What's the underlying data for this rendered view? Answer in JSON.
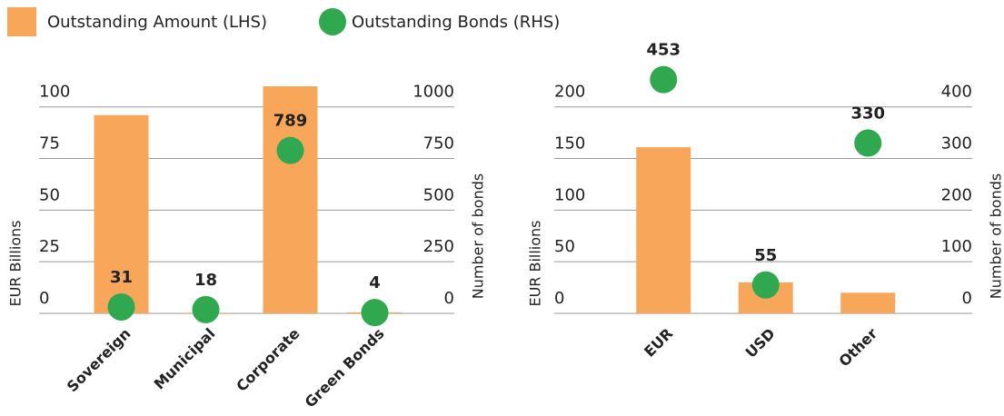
{
  "chart_data": [
    {
      "type": "bar_dot",
      "categories": [
        "Sovereign",
        "Municipal",
        "Corporate",
        "Green Bonds"
      ],
      "ylabel": "EUR Billions",
      "y2label": "Number of bonds",
      "ylim": [
        0,
        110
      ],
      "yticks": [
        0,
        25,
        50,
        75,
        100
      ],
      "y2lim": [
        0,
        1100
      ],
      "y2ticks": [
        0,
        250,
        500,
        750,
        1000
      ],
      "grid": true,
      "series": [
        {
          "name": "Outstanding Amount (LHS)",
          "color": "#f8a65a",
          "values": [
            96,
            0.3,
            110,
            0.5
          ]
        },
        {
          "name": "Outstanding Bonds (RHS)",
          "color": "#2fa84f",
          "axis": "y2",
          "values": [
            31,
            18,
            789,
            4
          ]
        }
      ]
    },
    {
      "type": "bar_dot",
      "categories": [
        "EUR",
        "USD",
        "Other"
      ],
      "ylabel": "EUR Billions",
      "y2label": "Number of bonds",
      "ylim": [
        0,
        220
      ],
      "yticks": [
        0,
        50,
        100,
        150,
        200
      ],
      "y2lim": [
        0,
        440
      ],
      "y2ticks": [
        0,
        100,
        200,
        300,
        400
      ],
      "grid": true,
      "series": [
        {
          "color": "#f8a65a",
          "values": [
            161,
            30,
            20
          ]
        },
        {
          "color": "#2fa84f",
          "axis": "y2",
          "values": [
            453,
            55,
            330
          ]
        }
      ]
    }
  ]
}
